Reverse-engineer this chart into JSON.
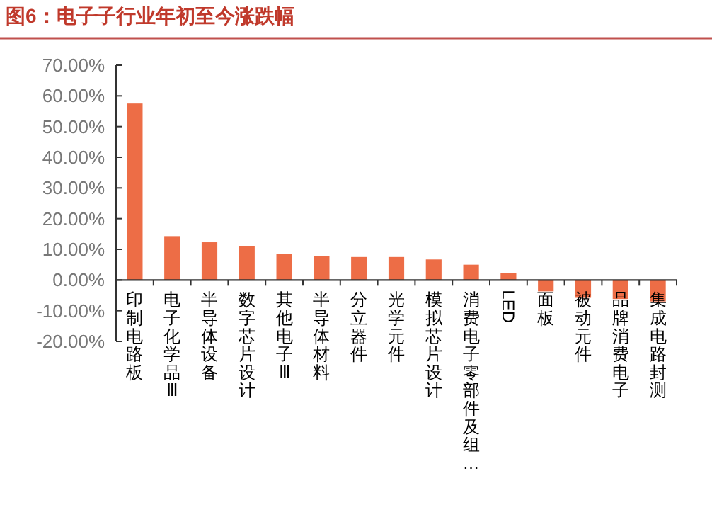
{
  "chart_data": {
    "type": "bar",
    "title": "图6：电子子行业年初至今涨跌幅",
    "categories": [
      "印制电路板",
      "电子化学品Ⅲ",
      "半导体设备",
      "数字芯片设计",
      "其他电子Ⅲ",
      "半导体材料",
      "分立器件",
      "光学元件",
      "模拟芯片设计",
      "消费电子零部件及组…",
      "LED",
      "面板",
      "被动元件",
      "品牌消费电子",
      "集成电路封测"
    ],
    "values": [
      57.5,
      14.3,
      12.3,
      11.0,
      8.4,
      7.8,
      7.5,
      7.5,
      6.7,
      5.0,
      2.3,
      -3.7,
      -5.8,
      -6.2,
      -7.0
    ],
    "color": "#ed6d46",
    "ylim": [
      -20,
      70
    ],
    "yticks": [
      {
        "value": -20,
        "label": "-20.00%"
      },
      {
        "value": -10,
        "label": "-10.00%"
      },
      {
        "value": 0,
        "label": "0.00%"
      },
      {
        "value": 10,
        "label": "10.00%"
      },
      {
        "value": 20,
        "label": "20.00%"
      },
      {
        "value": 30,
        "label": "30.00%"
      },
      {
        "value": 40,
        "label": "40.00%"
      },
      {
        "value": 50,
        "label": "50.00%"
      },
      {
        "value": 60,
        "label": "60.00%"
      },
      {
        "value": 70,
        "label": "70.00%"
      }
    ],
    "grid": false
  }
}
